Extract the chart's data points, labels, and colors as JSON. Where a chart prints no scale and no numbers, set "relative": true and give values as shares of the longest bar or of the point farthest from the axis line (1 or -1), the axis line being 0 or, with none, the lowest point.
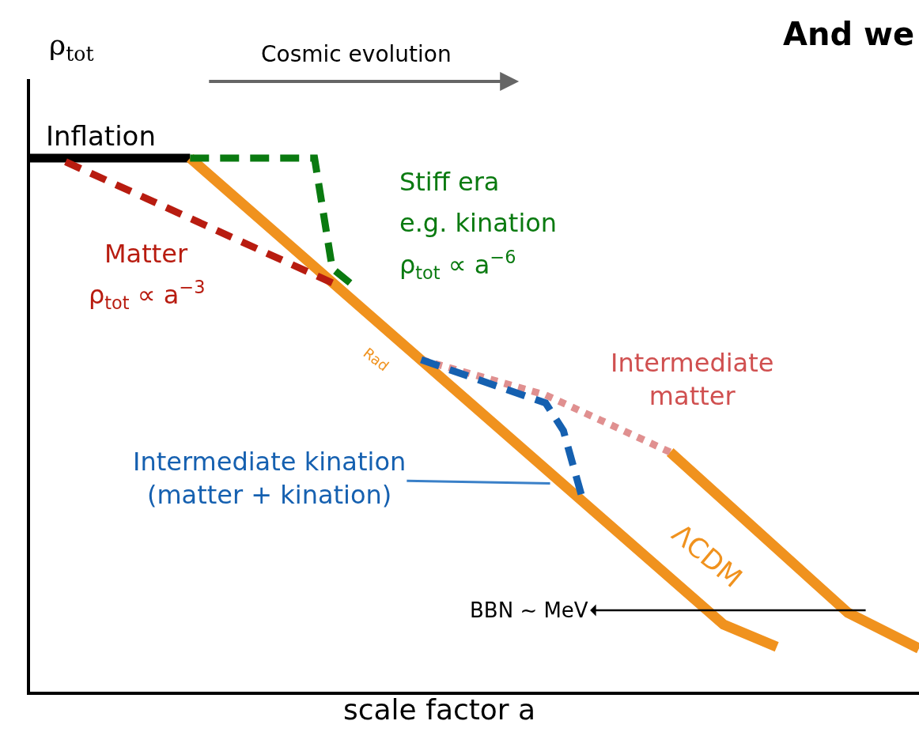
{
  "chart_data": {
    "type": "line",
    "relative": true,
    "title": "And we",
    "xlabel": "scale factor a",
    "ylabel": "ρ$_{tot}$",
    "categories": [
      null,
      null,
      null,
      null,
      null,
      null,
      null,
      null,
      null,
      null,
      null,
      null,
      null,
      null,
      null,
      null,
      null,
      null,
      null,
      null,
      null,
      null,
      null,
      null,
      null,
      null,
      null,
      null,
      null,
      null,
      null,
      null,
      null,
      null,
      null,
      null,
      null,
      null,
      null,
      null,
      null,
      null,
      null,
      null,
      null,
      null,
      null,
      null,
      null,
      null,
      null
    ],
    "series": [
      {
        "color": "#000000",
        "line_style": "solid",
        "values": [
          1.0,
          null,
          null,
          null,
          null,
          null,
          null,
          null,
          null,
          1.0,
          null,
          null,
          null,
          null,
          null,
          null,
          null,
          null,
          null,
          null,
          null,
          null,
          null,
          null,
          null,
          null,
          null,
          null,
          null,
          null,
          null,
          null,
          null,
          null,
          null,
          null,
          null,
          null,
          null,
          null,
          null,
          null,
          null,
          null,
          null,
          null,
          null,
          null,
          null,
          null,
          null
        ]
      },
      {
        "color": "#f0921e",
        "line_style": "solid",
        "values": [
          null,
          null,
          null,
          null,
          null,
          null,
          null,
          null,
          null,
          1.0,
          null,
          null,
          null,
          null,
          null,
          null,
          null,
          null,
          null,
          null,
          null,
          null,
          null,
          null,
          null,
          null,
          null,
          null,
          null,
          null,
          null,
          null,
          null,
          null,
          null,
          null,
          null,
          null,
          null,
          0.126,
          null,
          null,
          0.084,
          null,
          null,
          null,
          null,
          null,
          null,
          null,
          null
        ]
      },
      {
        "color": "#f0921e",
        "line_style": "solid",
        "values": [
          null,
          null,
          null,
          null,
          null,
          null,
          null,
          null,
          null,
          null,
          null,
          null,
          null,
          null,
          null,
          null,
          null,
          null,
          null,
          null,
          null,
          null,
          null,
          null,
          null,
          null,
          null,
          null,
          null,
          null,
          null,
          null,
          null,
          null,
          null,
          null,
          0.449,
          null,
          null,
          null,
          null,
          null,
          null,
          null,
          null,
          null,
          0.148,
          null,
          null,
          null,
          0.081
        ]
      },
      {
        "color": "#0a7a10",
        "line_style": "dashed",
        "values": [
          null,
          null,
          null,
          null,
          null,
          null,
          null,
          null,
          null,
          1.0,
          null,
          null,
          null,
          null,
          null,
          null,
          1.0,
          0.793,
          0.766,
          null,
          null,
          null,
          null,
          null,
          null,
          null,
          null,
          null,
          null,
          null,
          null,
          null,
          null,
          null,
          null,
          null,
          null,
          null,
          null,
          null,
          null,
          null,
          null,
          null,
          null,
          null,
          null,
          null,
          null,
          null,
          null
        ]
      },
      {
        "color": "#b81c10",
        "line_style": "dashed",
        "values": [
          null,
          null,
          0.993,
          null,
          null,
          null,
          null,
          null,
          null,
          null,
          null,
          null,
          null,
          null,
          null,
          null,
          null,
          0.766,
          null,
          null,
          null,
          null,
          null,
          null,
          null,
          null,
          null,
          null,
          null,
          null,
          null,
          null,
          null,
          null,
          null,
          null,
          null,
          null,
          null,
          null,
          null,
          null,
          null,
          null,
          null,
          null,
          null,
          null,
          null,
          null,
          null
        ]
      },
      {
        "color": "#e09090",
        "line_style": "dotted",
        "values": [
          null,
          null,
          null,
          null,
          null,
          null,
          null,
          null,
          null,
          null,
          null,
          null,
          null,
          null,
          null,
          null,
          null,
          null,
          null,
          null,
          null,
          null,
          0.622,
          null,
          null,
          null,
          null,
          null,
          null,
          0.556,
          null,
          null,
          null,
          null,
          null,
          null,
          0.449,
          null,
          null,
          null,
          null,
          null,
          null,
          null,
          null,
          null,
          null,
          null,
          null,
          null,
          null
        ]
      },
      {
        "color": "#1560b0",
        "line_style": "dashed",
        "values": [
          null,
          null,
          null,
          null,
          null,
          null,
          null,
          null,
          null,
          null,
          null,
          null,
          null,
          null,
          null,
          null,
          null,
          null,
          null,
          null,
          null,
          null,
          0.622,
          null,
          null,
          null,
          null,
          null,
          null,
          0.541,
          0.489,
          0.37,
          null,
          null,
          null,
          null,
          null,
          null,
          null,
          null,
          null,
          null,
          null,
          null,
          null,
          null,
          null,
          null,
          null,
          null,
          null
        ]
      }
    ],
    "annotations": [
      "Inflation",
      "Cosmic evolution",
      "Stiff era",
      "e.g. kination",
      "ρ$_{tot}$ ∝ a$^{−6}$",
      "Matter",
      "ρ$_{tot}$ ∝ a$^{−3}$",
      "Rad",
      "Intermediate\nmatter",
      "Intermediate kination\n(matter + kination)",
      "ΛCDM",
      "BBN ∼ MeV"
    ]
  }
}
